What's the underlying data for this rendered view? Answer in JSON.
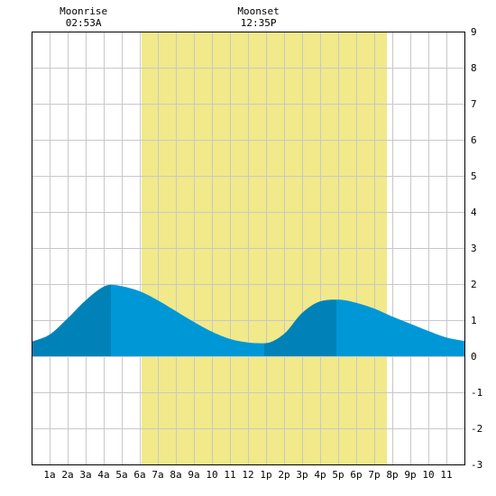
{
  "chart_data": {
    "type": "area",
    "title": "",
    "xlabel": "",
    "ylabel": "",
    "x_unit": "hours since midnight",
    "x_range": [
      0,
      24
    ],
    "ylim": [
      -3,
      9
    ],
    "y_ticks": [
      -3,
      -2,
      -1,
      0,
      1,
      2,
      3,
      4,
      5,
      6,
      7,
      8,
      9
    ],
    "x_ticks": [
      {
        "hour": 1,
        "label": "1a"
      },
      {
        "hour": 2,
        "label": "2a"
      },
      {
        "hour": 3,
        "label": "3a"
      },
      {
        "hour": 4,
        "label": "4a"
      },
      {
        "hour": 5,
        "label": "5a"
      },
      {
        "hour": 6,
        "label": "6a"
      },
      {
        "hour": 7,
        "label": "7a"
      },
      {
        "hour": 8,
        "label": "8a"
      },
      {
        "hour": 9,
        "label": "9a"
      },
      {
        "hour": 10,
        "label": "10"
      },
      {
        "hour": 11,
        "label": "11"
      },
      {
        "hour": 12,
        "label": "12"
      },
      {
        "hour": 13,
        "label": "1p"
      },
      {
        "hour": 14,
        "label": "2p"
      },
      {
        "hour": 15,
        "label": "3p"
      },
      {
        "hour": 16,
        "label": "4p"
      },
      {
        "hour": 17,
        "label": "5p"
      },
      {
        "hour": 18,
        "label": "6p"
      },
      {
        "hour": 19,
        "label": "7p"
      },
      {
        "hour": 20,
        "label": "8p"
      },
      {
        "hour": 21,
        "label": "9p"
      },
      {
        "hour": 22,
        "label": "10"
      },
      {
        "hour": 23,
        "label": "11"
      }
    ],
    "grid": true,
    "daylight": {
      "start": 6.1,
      "end": 19.7
    },
    "series": [
      {
        "x": [
          0,
          1,
          2,
          3,
          4,
          4.4,
          5,
          6,
          7,
          8,
          9,
          10,
          11,
          12,
          12.9,
          14,
          15,
          16,
          17,
          18,
          19,
          20,
          21,
          22,
          23,
          24
        ],
        "values": [
          0.4,
          0.6,
          1.05,
          1.55,
          1.93,
          1.98,
          1.94,
          1.8,
          1.55,
          1.25,
          0.95,
          0.68,
          0.48,
          0.38,
          0.36,
          0.62,
          1.2,
          1.52,
          1.57,
          1.48,
          1.32,
          1.1,
          0.9,
          0.7,
          0.52,
          0.42
        ]
      }
    ],
    "extremes": [
      {
        "time": 4.4,
        "value": 1.98
      },
      {
        "time": 12.9,
        "value": 0.36
      },
      {
        "time": 16.9,
        "value": 1.57
      }
    ],
    "moon_events": [
      {
        "label": "Moonrise",
        "time_label": "02:53A",
        "hour": 2.88
      },
      {
        "label": "Moonset",
        "time_label": "12:35P",
        "hour": 12.58
      }
    ],
    "colors": {
      "daylight": "#f1e98a",
      "tide_light": "#0097d7",
      "tide_dark": "#0082b8",
      "grid": "#c8c8c8",
      "border": "#000000",
      "background": "#ffffff"
    }
  }
}
